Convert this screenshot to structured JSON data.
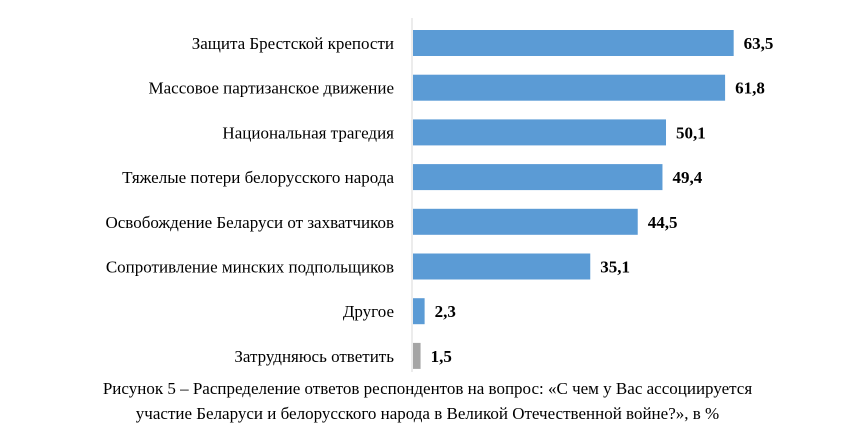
{
  "chart_data": {
    "type": "bar",
    "orientation": "horizontal",
    "categories": [
      "Защита Брестской крепости",
      "Массовое партизанское движение",
      "Национальная трагедия",
      "Тяжелые потери белорусского народа",
      "Освобождение Беларуси от захватчиков",
      "Сопротивление минских подпольщиков",
      "Другое",
      "Затрудняюсь ответить"
    ],
    "values": [
      63.5,
      61.8,
      50.1,
      49.4,
      44.5,
      35.1,
      2.3,
      1.5
    ],
    "value_labels": [
      "63,5",
      "61,8",
      "50,1",
      "49,4",
      "44,5",
      "35,1",
      "2,3",
      "1,5"
    ],
    "colors": [
      "#5b9bd5",
      "#5b9bd5",
      "#5b9bd5",
      "#5b9bd5",
      "#5b9bd5",
      "#5b9bd5",
      "#5b9bd5",
      "#a5a5a5"
    ],
    "axis_color": "#d9d9d9",
    "xlim": [
      0,
      70
    ],
    "grid": false,
    "legend": "none"
  },
  "caption": {
    "line1": "Рисунок 5 – Распределение ответов респондентов на вопрос: «С чем у Вас ассоциируется",
    "line2": "участие Беларуси и белорусского народа в Великой Отечественной войне?», в %"
  }
}
